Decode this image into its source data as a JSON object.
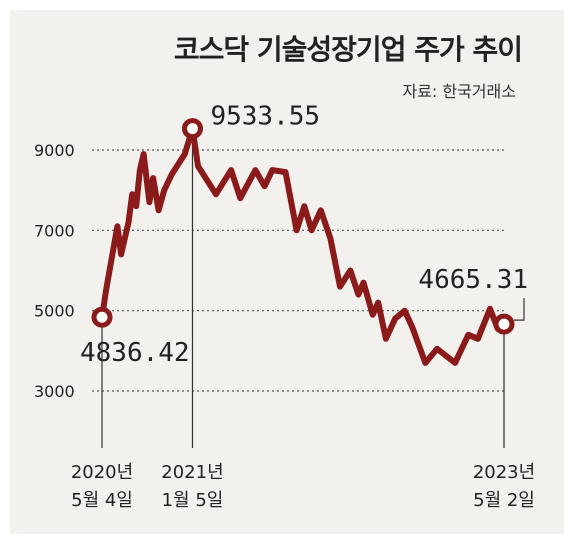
{
  "header": {
    "title": "코스닥 기술성장기업 주가 추이",
    "source": "자료: 한국거래소"
  },
  "colors": {
    "line": "#8b1a1a",
    "marker_fill": "#ffffff",
    "background": "#f2f1ee",
    "grid": "#555555"
  },
  "chart_data": {
    "type": "line",
    "title": "코스닥 기술성장기업 주가 추이",
    "xlabel": "",
    "ylabel": "",
    "ylim": [
      2200,
      10000
    ],
    "y_ticks": [
      "9000",
      "7000",
      "5000",
      "3000"
    ],
    "y_tick_values": [
      9000,
      7000,
      5000,
      3000
    ],
    "grid": "dotted horizontal",
    "x_labels": [
      {
        "line1": "2020년",
        "line2": "5월 4일",
        "date": "2020-05-04"
      },
      {
        "line1": "2021년",
        "line2": "1월 5일",
        "date": "2021-01-05"
      },
      {
        "line1": "2023년",
        "line2": "5월 2일",
        "date": "2023-05-02"
      }
    ],
    "annotations": [
      {
        "text": "4836.42",
        "date": "2020-05-04",
        "value": 4836.42
      },
      {
        "text": "9533.55",
        "date": "2021-01-05",
        "value": 9533.55
      },
      {
        "text": "4665.31",
        "date": "2023-05-02",
        "value": 4665.31
      }
    ],
    "series": [
      {
        "points": [
          [
            "2020-05-04",
            4836.42
          ],
          [
            "2020-05-15",
            5500
          ],
          [
            "2020-06-05",
            6600
          ],
          [
            "2020-06-15",
            7100
          ],
          [
            "2020-06-25",
            6400
          ],
          [
            "2020-07-15",
            7200
          ],
          [
            "2020-07-25",
            7900
          ],
          [
            "2020-08-05",
            7600
          ],
          [
            "2020-08-15",
            8500
          ],
          [
            "2020-08-25",
            8900
          ],
          [
            "2020-09-10",
            7700
          ],
          [
            "2020-09-20",
            8300
          ],
          [
            "2020-10-05",
            7500
          ],
          [
            "2020-10-20",
            8000
          ],
          [
            "2020-11-10",
            8400
          ],
          [
            "2020-12-15",
            8900
          ],
          [
            "2021-01-05",
            9533.55
          ],
          [
            "2021-01-20",
            8600
          ],
          [
            "2021-02-10",
            8300
          ],
          [
            "2021-03-10",
            7900
          ],
          [
            "2021-04-20",
            8500
          ],
          [
            "2021-05-15",
            7800
          ],
          [
            "2021-06-25",
            8500
          ],
          [
            "2021-07-20",
            8100
          ],
          [
            "2021-08-10",
            8500
          ],
          [
            "2021-09-15",
            8450
          ],
          [
            "2021-10-15",
            7000
          ],
          [
            "2021-11-05",
            7600
          ],
          [
            "2021-11-25",
            7000
          ],
          [
            "2021-12-20",
            7500
          ],
          [
            "2022-01-15",
            6800
          ],
          [
            "2022-02-10",
            5600
          ],
          [
            "2022-03-10",
            6000
          ],
          [
            "2022-04-01",
            5400
          ],
          [
            "2022-04-15",
            5700
          ],
          [
            "2022-05-10",
            4900
          ],
          [
            "2022-05-25",
            5200
          ],
          [
            "2022-06-15",
            4300
          ],
          [
            "2022-07-10",
            4800
          ],
          [
            "2022-08-05",
            5000
          ],
          [
            "2022-08-25",
            4600
          ],
          [
            "2022-09-30",
            3700
          ],
          [
            "2022-11-01",
            4050
          ],
          [
            "2022-12-20",
            3700
          ],
          [
            "2023-01-25",
            4400
          ],
          [
            "2023-02-20",
            4300
          ],
          [
            "2023-03-25",
            5050
          ],
          [
            "2023-04-15",
            4550
          ],
          [
            "2023-05-02",
            4665.31
          ]
        ]
      }
    ]
  }
}
